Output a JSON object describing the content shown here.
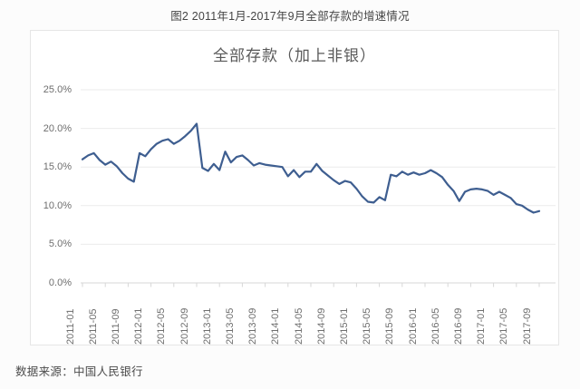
{
  "page": {
    "caption": "图2 2011年1月-2017年9月全部存款的增速情况",
    "source_note": "数据来源：中国人民银行"
  },
  "chart_data": {
    "type": "line",
    "title": "全部存款（加上非银）",
    "xlabel": "",
    "ylabel": "",
    "ylim": [
      0,
      25
    ],
    "grid": "horizontal",
    "legend": "none",
    "line_color": "#3e5e90",
    "gridline_color": "#ebebeb",
    "axis_color": "#d7d7d7",
    "y_axis": {
      "ticks": [
        {
          "label": "25.0%",
          "value": 25
        },
        {
          "label": "20.0%",
          "value": 20
        },
        {
          "label": "15.0%",
          "value": 15
        },
        {
          "label": "10.0%",
          "value": 10
        },
        {
          "label": "5.0%",
          "value": 5
        },
        {
          "label": "0.0%",
          "value": 0
        }
      ]
    },
    "x_tick_interval": 4,
    "x": [
      "2011-01",
      "2011-02",
      "2011-03",
      "2011-04",
      "2011-05",
      "2011-06",
      "2011-07",
      "2011-08",
      "2011-09",
      "2011-10",
      "2011-11",
      "2011-12",
      "2012-01",
      "2012-02",
      "2012-03",
      "2012-04",
      "2012-05",
      "2012-06",
      "2012-07",
      "2012-08",
      "2012-09",
      "2012-10",
      "2012-11",
      "2012-12",
      "2013-01",
      "2013-02",
      "2013-03",
      "2013-04",
      "2013-05",
      "2013-06",
      "2013-07",
      "2013-08",
      "2013-09",
      "2013-10",
      "2013-11",
      "2013-12",
      "2014-01",
      "2014-02",
      "2014-03",
      "2014-04",
      "2014-05",
      "2014-06",
      "2014-07",
      "2014-08",
      "2014-09",
      "2014-10",
      "2014-11",
      "2014-12",
      "2015-01",
      "2015-02",
      "2015-03",
      "2015-04",
      "2015-05",
      "2015-06",
      "2015-07",
      "2015-08",
      "2015-09",
      "2015-10",
      "2015-11",
      "2015-12",
      "2016-01",
      "2016-02",
      "2016-03",
      "2016-04",
      "2016-05",
      "2016-06",
      "2016-07",
      "2016-08",
      "2016-09",
      "2016-10",
      "2016-11",
      "2016-12",
      "2017-01",
      "2017-02",
      "2017-03",
      "2017-04",
      "2017-05",
      "2017-06",
      "2017-07",
      "2017-08",
      "2017-09"
    ],
    "series": [
      {
        "name": "全部存款（加上非银）",
        "values": [
          16.0,
          16.5,
          16.8,
          15.9,
          15.3,
          15.7,
          15.1,
          14.2,
          13.5,
          13.1,
          16.8,
          16.4,
          17.3,
          18.0,
          18.4,
          18.6,
          18.0,
          18.4,
          19.0,
          19.7,
          20.6,
          14.9,
          14.5,
          15.4,
          14.6,
          17.0,
          15.6,
          16.3,
          16.5,
          15.9,
          15.2,
          15.5,
          15.3,
          15.2,
          15.1,
          15.0,
          13.8,
          14.6,
          13.7,
          14.4,
          14.4,
          15.4,
          14.5,
          13.9,
          13.3,
          12.8,
          13.2,
          13.0,
          12.2,
          11.2,
          10.5,
          10.4,
          11.1,
          10.7,
          14.0,
          13.8,
          14.4,
          14.0,
          14.3,
          14.0,
          14.2,
          14.6,
          14.2,
          13.7,
          12.7,
          11.9,
          10.6,
          11.8,
          12.1,
          12.2,
          12.1,
          11.9,
          11.4,
          11.8,
          11.4,
          11.0,
          10.2,
          10.0,
          9.5,
          9.1,
          9.3
        ]
      }
    ]
  }
}
